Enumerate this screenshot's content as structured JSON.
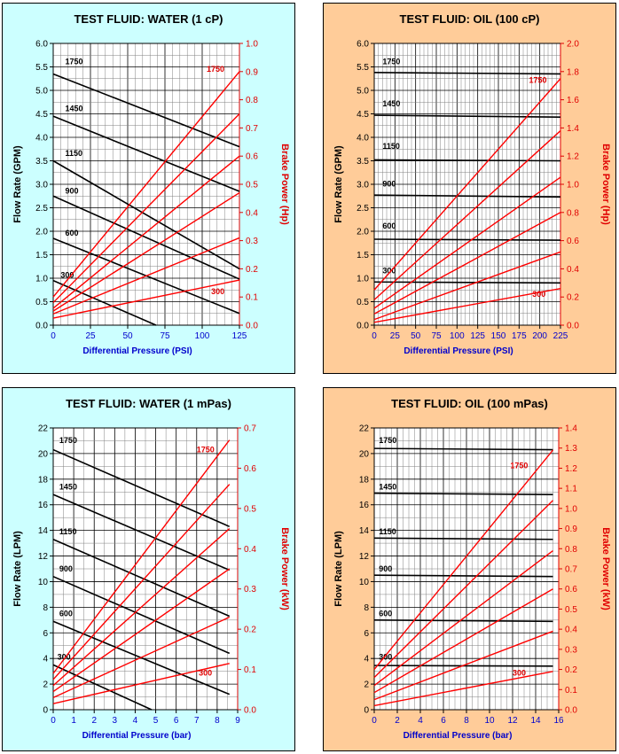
{
  "colors": {
    "water_bg": "#ccffff",
    "oil_bg": "#ffcc99",
    "flow": "#000000",
    "power": "#ff0000",
    "xaxis": "#0000cc"
  },
  "chart_data": [
    {
      "type": "line",
      "title": "TEST FLUID:  WATER (1 cP)",
      "xlabel": "Differential Pressure (PSI)",
      "ylabel": "Flow Rate (GPM)",
      "y2label": "Brake Power (Hp)",
      "xlim": [
        0,
        125
      ],
      "ylim": [
        0,
        6
      ],
      "y2lim": [
        0,
        1
      ],
      "xticks": [
        0,
        25,
        50,
        75,
        100,
        125
      ],
      "yticks": [
        "0.0",
        "0.5",
        "1.0",
        "1.5",
        "2.0",
        "2.5",
        "3.0",
        "3.5",
        "4.0",
        "4.5",
        "5.0",
        "5.5",
        "6.0"
      ],
      "y2ticks": [
        "0.0",
        "0.1",
        "0.2",
        "0.3",
        "0.4",
        "0.5",
        "0.6",
        "0.7",
        "0.8",
        "0.9",
        "1.0"
      ],
      "flow_series": [
        {
          "name": "1750",
          "points": [
            [
              0,
              5.35
            ],
            [
              125,
              3.8
            ]
          ]
        },
        {
          "name": "1450",
          "points": [
            [
              0,
              4.45
            ],
            [
              125,
              2.85
            ]
          ]
        },
        {
          "name": "1150",
          "points": [
            [
              0,
              3.5
            ],
            [
              125,
              1.2
            ]
          ]
        },
        {
          "name": "900",
          "points": [
            [
              0,
              2.75
            ],
            [
              125,
              0.98
            ]
          ]
        },
        {
          "name": "600",
          "points": [
            [
              0,
              1.85
            ],
            [
              125,
              0.25
            ]
          ]
        },
        {
          "name": "300",
          "points": [
            [
              0,
              0.95
            ],
            [
              69,
              0
            ]
          ]
        }
      ],
      "power_series": [
        {
          "name": "1750",
          "points": [
            [
              0,
              0.1
            ],
            [
              125,
              0.9
            ]
          ]
        },
        {
          "name": "1450",
          "points": [
            [
              0,
              0.08
            ],
            [
              125,
              0.75
            ]
          ]
        },
        {
          "name": "1150",
          "points": [
            [
              0,
              0.06
            ],
            [
              125,
              0.6
            ]
          ]
        },
        {
          "name": "900",
          "points": [
            [
              0,
              0.05
            ],
            [
              125,
              0.47
            ]
          ]
        },
        {
          "name": "600",
          "points": [
            [
              0,
              0.04
            ],
            [
              125,
              0.31
            ]
          ]
        },
        {
          "name": "300",
          "points": [
            [
              0,
              0.025
            ],
            [
              125,
              0.16
            ]
          ]
        }
      ],
      "flow_label_pos": [
        [
          8,
          5.5
        ],
        [
          8,
          4.5
        ],
        [
          8,
          3.55
        ],
        [
          8,
          2.75
        ],
        [
          8,
          1.85
        ],
        [
          5,
          0.95
        ]
      ],
      "power_labels": [
        {
          "text": "1750",
          "at": [
            103,
            0.9
          ]
        },
        {
          "text": "300",
          "at": [
            106,
            0.11
          ]
        }
      ]
    },
    {
      "type": "line",
      "title": "TEST FLUID:  OIL (100 cP)",
      "xlabel": "Differential Pressure (PSI)",
      "ylabel": "Flow Rate (GPM)",
      "y2label": "Brake Power (Hp)",
      "xlim": [
        0,
        225
      ],
      "ylim": [
        0,
        6
      ],
      "y2lim": [
        0,
        2
      ],
      "xticks": [
        0,
        25,
        50,
        75,
        100,
        125,
        150,
        175,
        200,
        225
      ],
      "yticks": [
        "0.0",
        "0.5",
        "1.0",
        "1.5",
        "2.0",
        "2.5",
        "3.0",
        "3.5",
        "4.0",
        "4.5",
        "5.0",
        "5.5",
        "6.0"
      ],
      "y2ticks": [
        "0.0",
        "0.2",
        "0.4",
        "0.6",
        "0.8",
        "1.0",
        "1.2",
        "1.4",
        "1.6",
        "1.8",
        "2.0"
      ],
      "flow_series": [
        {
          "name": "1750",
          "points": [
            [
              0,
              5.38
            ],
            [
              225,
              5.35
            ]
          ]
        },
        {
          "name": "1450",
          "points": [
            [
              0,
              4.47
            ],
            [
              225,
              4.43
            ]
          ]
        },
        {
          "name": "1150",
          "points": [
            [
              0,
              3.52
            ],
            [
              225,
              3.5
            ]
          ]
        },
        {
          "name": "900",
          "points": [
            [
              0,
              2.77
            ],
            [
              225,
              2.73
            ]
          ]
        },
        {
          "name": "600",
          "points": [
            [
              0,
              1.83
            ],
            [
              225,
              1.81
            ]
          ]
        },
        {
          "name": "300",
          "points": [
            [
              0,
              0.92
            ],
            [
              225,
              0.9
            ]
          ]
        }
      ],
      "power_series": [
        {
          "name": "1750",
          "points": [
            [
              0,
              0.25
            ],
            [
              225,
              1.75
            ]
          ]
        },
        {
          "name": "1450",
          "points": [
            [
              0,
              0.18
            ],
            [
              225,
              1.38
            ]
          ]
        },
        {
          "name": "1150",
          "points": [
            [
              0,
              0.12
            ],
            [
              225,
              1.05
            ]
          ]
        },
        {
          "name": "900",
          "points": [
            [
              0,
              0.08
            ],
            [
              225,
              0.8
            ]
          ]
        },
        {
          "name": "600",
          "points": [
            [
              0,
              0.04
            ],
            [
              225,
              0.52
            ]
          ]
        },
        {
          "name": "300",
          "points": [
            [
              0,
              0.02
            ],
            [
              225,
              0.26
            ]
          ]
        }
      ],
      "flow_label_pos": [
        [
          10,
          5.5
        ],
        [
          10,
          4.6
        ],
        [
          10,
          3.7
        ],
        [
          10,
          2.9
        ],
        [
          10,
          2.0
        ],
        [
          10,
          1.05
        ]
      ],
      "power_labels": [
        {
          "text": "1750",
          "at": [
            187,
            1.72
          ]
        },
        {
          "text": "300",
          "at": [
            191,
            0.2
          ]
        }
      ]
    },
    {
      "type": "line",
      "title": "TEST FLUID:  WATER (1 mPas)",
      "xlabel": "Differential Pressure (bar)",
      "ylabel": "Flow Rate (LPM)",
      "y2label": "Brake Power (kW)",
      "xlim": [
        0,
        9
      ],
      "ylim": [
        0,
        22
      ],
      "y2lim": [
        0,
        0.7
      ],
      "xticks": [
        0,
        1,
        2,
        3,
        4,
        5,
        6,
        7,
        8,
        9
      ],
      "yticks": [
        "0",
        "2",
        "4",
        "6",
        "8",
        "10",
        "12",
        "14",
        "16",
        "18",
        "20",
        "22"
      ],
      "y2ticks": [
        "0.0",
        "0.1",
        "0.2",
        "0.3",
        "0.4",
        "0.5",
        "0.6",
        "0.7"
      ],
      "flow_series": [
        {
          "name": "1750",
          "points": [
            [
              0,
              20.3
            ],
            [
              8.6,
              14.3
            ]
          ]
        },
        {
          "name": "1450",
          "points": [
            [
              0,
              16.8
            ],
            [
              8.6,
              10.9
            ]
          ]
        },
        {
          "name": "1150",
          "points": [
            [
              0,
              13.3
            ],
            [
              8.6,
              7.3
            ]
          ]
        },
        {
          "name": "900",
          "points": [
            [
              0,
              10.4
            ],
            [
              8.6,
              4.4
            ]
          ]
        },
        {
          "name": "600",
          "points": [
            [
              0,
              6.9
            ],
            [
              8.6,
              1.2
            ]
          ]
        },
        {
          "name": "300",
          "points": [
            [
              0,
              3.5
            ],
            [
              4.8,
              0
            ]
          ]
        }
      ],
      "power_series": [
        {
          "name": "1750",
          "points": [
            [
              0,
              0.09
            ],
            [
              8.6,
              0.67
            ]
          ]
        },
        {
          "name": "1450",
          "points": [
            [
              0,
              0.075
            ],
            [
              8.6,
              0.56
            ]
          ]
        },
        {
          "name": "1150",
          "points": [
            [
              0,
              0.06
            ],
            [
              8.6,
              0.45
            ]
          ]
        },
        {
          "name": "900",
          "points": [
            [
              0,
              0.045
            ],
            [
              8.6,
              0.35
            ]
          ]
        },
        {
          "name": "600",
          "points": [
            [
              0,
              0.03
            ],
            [
              8.6,
              0.23
            ]
          ]
        },
        {
          "name": "300",
          "points": [
            [
              0,
              0.015
            ],
            [
              8.6,
              0.115
            ]
          ]
        }
      ],
      "flow_label_pos": [
        [
          0.3,
          20.6
        ],
        [
          0.3,
          17.0
        ],
        [
          0.3,
          13.5
        ],
        [
          0.3,
          10.6
        ],
        [
          0.3,
          7.1
        ],
        [
          0.2,
          3.7
        ]
      ],
      "power_labels": [
        {
          "text": "1750",
          "at": [
            7.0,
            0.64
          ]
        },
        {
          "text": "300",
          "at": [
            7.1,
            0.085
          ]
        }
      ]
    },
    {
      "type": "line",
      "title": "TEST FLUID:  OIL (100 mPas)",
      "xlabel": "Differential Pressure (bar)",
      "ylabel": "Flow Rate (LPM)",
      "y2label": "Brake Power (kW)",
      "xlim": [
        0,
        16
      ],
      "ylim": [
        0,
        22
      ],
      "y2lim": [
        0,
        1.4
      ],
      "xticks": [
        0,
        2,
        4,
        6,
        8,
        10,
        12,
        14,
        16
      ],
      "yticks": [
        "0",
        "2",
        "4",
        "6",
        "8",
        "10",
        "12",
        "14",
        "16",
        "18",
        "20",
        "22"
      ],
      "y2ticks": [
        "0.0",
        "0.1",
        "0.2",
        "0.3",
        "0.4",
        "0.5",
        "0.6",
        "0.7",
        "0.8",
        "0.9",
        "1.0",
        "1.1",
        "1.2",
        "1.3",
        "1.4"
      ],
      "flow_series": [
        {
          "name": "1750",
          "points": [
            [
              0,
              20.4
            ],
            [
              15.5,
              20.3
            ]
          ]
        },
        {
          "name": "1450",
          "points": [
            [
              0,
              16.9
            ],
            [
              15.5,
              16.8
            ]
          ]
        },
        {
          "name": "1150",
          "points": [
            [
              0,
              13.4
            ],
            [
              15.5,
              13.3
            ]
          ]
        },
        {
          "name": "900",
          "points": [
            [
              0,
              10.5
            ],
            [
              15.5,
              10.4
            ]
          ]
        },
        {
          "name": "600",
          "points": [
            [
              0,
              7.0
            ],
            [
              15.5,
              6.9
            ]
          ]
        },
        {
          "name": "300",
          "points": [
            [
              0,
              3.45
            ],
            [
              15.5,
              3.4
            ]
          ]
        }
      ],
      "power_series": [
        {
          "name": "1750",
          "points": [
            [
              0,
              0.2
            ],
            [
              15.5,
              1.29
            ]
          ]
        },
        {
          "name": "1450",
          "points": [
            [
              0,
              0.16
            ],
            [
              15.5,
              1.04
            ]
          ]
        },
        {
          "name": "1150",
          "points": [
            [
              0,
              0.12
            ],
            [
              15.5,
              0.79
            ]
          ]
        },
        {
          "name": "900",
          "points": [
            [
              0,
              0.085
            ],
            [
              15.5,
              0.6
            ]
          ]
        },
        {
          "name": "600",
          "points": [
            [
              0,
              0.05
            ],
            [
              15.5,
              0.39
            ]
          ]
        },
        {
          "name": "300",
          "points": [
            [
              0,
              0.02
            ],
            [
              15.5,
              0.19
            ]
          ]
        }
      ],
      "flow_label_pos": [
        [
          0.4,
          20.6
        ],
        [
          0.4,
          17.0
        ],
        [
          0.4,
          13.5
        ],
        [
          0.4,
          10.6
        ],
        [
          0.4,
          7.1
        ],
        [
          0.4,
          3.7
        ]
      ],
      "power_labels": [
        {
          "text": "1750",
          "at": [
            11.8,
            1.2
          ]
        },
        {
          "text": "300",
          "at": [
            12.0,
            0.17
          ]
        }
      ]
    }
  ]
}
